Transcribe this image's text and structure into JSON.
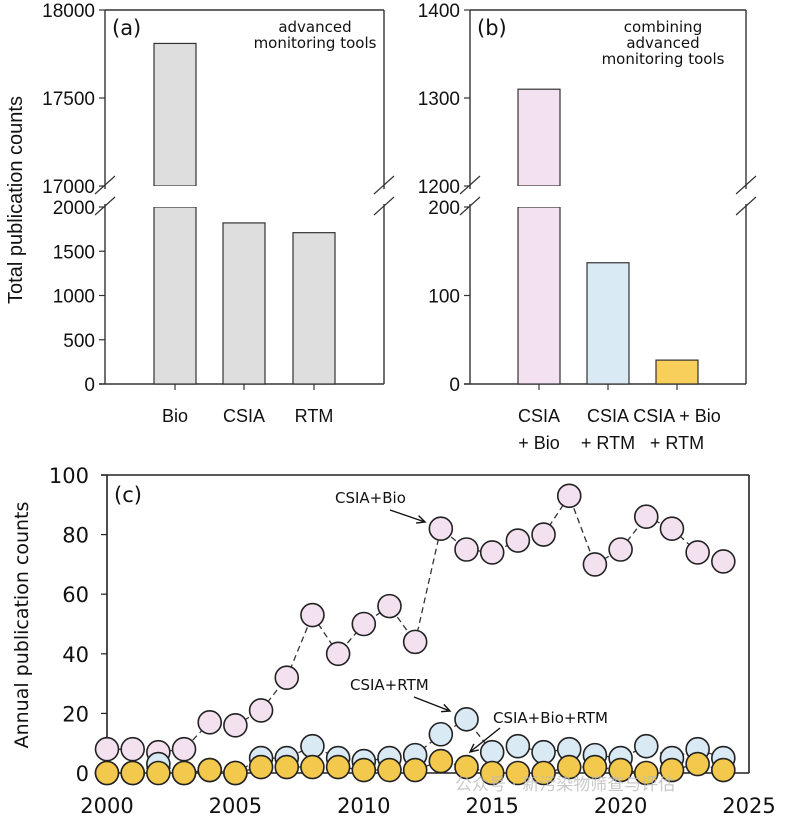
{
  "chart_data": [
    {
      "id": "a",
      "type": "bar",
      "panel_label": "(a)",
      "annotation": [
        "advanced",
        "monitoring tools"
      ],
      "ylabel": "Total publication counts",
      "categories": [
        "Bio",
        "CSIA",
        "RTM"
      ],
      "values": [
        17810,
        1820,
        1710
      ],
      "colors": [
        "#dedede",
        "#dedede",
        "#dedede"
      ],
      "broken_axis": {
        "lower": {
          "range": [
            0,
            2000
          ],
          "ticks": [
            0,
            500,
            1000,
            1500,
            2000
          ]
        },
        "upper": {
          "range": [
            17000,
            18000
          ],
          "ticks": [
            17000,
            17500,
            18000
          ]
        }
      }
    },
    {
      "id": "b",
      "type": "bar",
      "panel_label": "(b)",
      "annotation": [
        "combining",
        "advanced",
        "monitoring tools"
      ],
      "categories": [
        [
          "CSIA",
          "+ Bio"
        ],
        [
          "CSIA",
          "+ RTM"
        ],
        [
          "CSIA + Bio",
          "+ RTM"
        ]
      ],
      "values": [
        1310,
        137,
        27
      ],
      "colors": [
        "#f3e1ef",
        "#daeaf5",
        "#f7cf5a"
      ],
      "broken_axis": {
        "lower": {
          "range": [
            0,
            200
          ],
          "ticks": [
            0,
            100,
            200
          ]
        },
        "upper": {
          "range": [
            1200,
            1400
          ],
          "ticks": [
            1200,
            1300,
            1400
          ]
        }
      }
    },
    {
      "id": "c",
      "type": "line",
      "panel_label": "(c)",
      "ylabel": "Annual publication counts",
      "xlim": [
        2000,
        2025
      ],
      "ylim": [
        0,
        100
      ],
      "xticks": [
        2000,
        2005,
        2010,
        2015,
        2020,
        2025
      ],
      "yticks": [
        0,
        20,
        40,
        60,
        80,
        100
      ],
      "x": [
        2000,
        2001,
        2002,
        2003,
        2004,
        2005,
        2006,
        2007,
        2008,
        2009,
        2010,
        2011,
        2012,
        2013,
        2014,
        2015,
        2016,
        2017,
        2018,
        2019,
        2020,
        2021,
        2022,
        2023,
        2024
      ],
      "series": [
        {
          "name": "CSIA+Bio",
          "color": "#f3e1ef",
          "values": [
            8,
            8,
            7,
            8,
            17,
            16,
            21,
            32,
            53,
            40,
            50,
            56,
            44,
            82,
            75,
            74,
            78,
            80,
            93,
            70,
            75,
            86,
            82,
            74,
            71
          ]
        },
        {
          "name": "CSIA+RTM",
          "color": "#daeaf5",
          "values": [
            0,
            0,
            3,
            0,
            1,
            0,
            5,
            5,
            9,
            5,
            4,
            5,
            6,
            13,
            18,
            7,
            9,
            7,
            8,
            6,
            5,
            9,
            5,
            8,
            5
          ]
        },
        {
          "name": "CSIA+Bio+RTM",
          "color": "#f2c94c",
          "values": [
            0,
            0,
            0,
            0,
            1,
            0,
            2,
            2,
            2,
            2,
            1,
            1,
            1,
            4,
            2,
            0,
            0,
            0,
            2,
            2,
            1,
            0,
            1,
            3,
            1
          ]
        }
      ],
      "annotations": [
        "CSIA+Bio",
        "CSIA+RTM",
        "CSIA+Bio+RTM"
      ]
    }
  ],
  "watermark": "公众号 · 新污染物筛查与评估"
}
